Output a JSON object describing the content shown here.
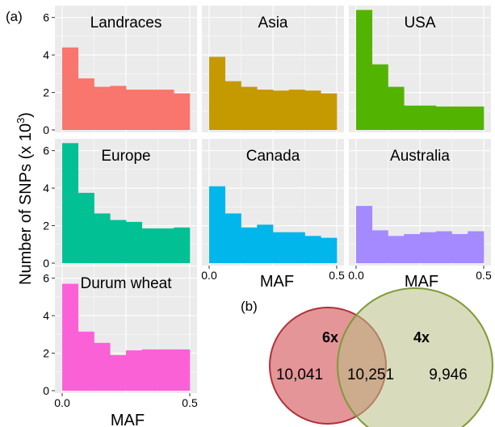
{
  "panel_a_label": "(a)",
  "panel_b_label": "(b)",
  "ylabel": "Number of SNPs (x 10",
  "ylabel_superscript": "3",
  "ylabel_close": ")",
  "xlabel": "MAF",
  "chart_data": [
    {
      "type": "bar",
      "title": "Landraces",
      "x": [
        0,
        0.0625,
        0.125,
        0.1875,
        0.25,
        0.3125,
        0.375,
        0.4375
      ],
      "values": [
        4.4,
        2.75,
        2.3,
        2.35,
        2.15,
        2.15,
        2.15,
        1.95
      ],
      "color": "#F8766D",
      "xlim": [
        0,
        0.5
      ],
      "ylim": [
        0,
        6.5
      ],
      "yticks": [
        "0",
        "2",
        "4",
        "6"
      ],
      "xticks": [],
      "grid": true
    },
    {
      "type": "bar",
      "title": "Asia",
      "x": [
        0,
        0.0625,
        0.125,
        0.1875,
        0.25,
        0.3125,
        0.375,
        0.4375
      ],
      "values": [
        3.9,
        2.6,
        2.3,
        2.15,
        2.1,
        2.15,
        2.1,
        1.95
      ],
      "color": "#C49A00",
      "xlim": [
        0,
        0.5
      ],
      "ylim": [
        0,
        6.5
      ],
      "yticks": [],
      "xticks": [],
      "grid": true
    },
    {
      "type": "bar",
      "title": "USA",
      "x": [
        0,
        0.0625,
        0.125,
        0.1875,
        0.25,
        0.3125,
        0.375,
        0.4375
      ],
      "values": [
        6.4,
        3.5,
        2.3,
        1.3,
        1.3,
        1.25,
        1.25,
        1.25
      ],
      "color": "#53B400",
      "xlim": [
        0,
        0.5
      ],
      "ylim": [
        0,
        6.5
      ],
      "yticks": [],
      "xticks": [],
      "grid": true
    },
    {
      "type": "bar",
      "title": "Europe",
      "x": [
        0,
        0.0625,
        0.125,
        0.1875,
        0.25,
        0.3125,
        0.375,
        0.4375
      ],
      "values": [
        6.4,
        3.75,
        2.65,
        2.3,
        2.2,
        1.85,
        1.85,
        1.9
      ],
      "color": "#00C094",
      "xlim": [
        0,
        0.5
      ],
      "ylim": [
        0,
        6.5
      ],
      "yticks": [
        "0",
        "2",
        "4",
        "6"
      ],
      "xticks": [],
      "grid": true
    },
    {
      "type": "bar",
      "title": "Canada",
      "x": [
        0,
        0.0625,
        0.125,
        0.1875,
        0.25,
        0.3125,
        0.375,
        0.4375
      ],
      "values": [
        4.1,
        2.65,
        1.9,
        2.05,
        1.65,
        1.65,
        1.45,
        1.35
      ],
      "color": "#00B6EB",
      "xlim": [
        0,
        0.5
      ],
      "ylim": [
        0,
        6.5
      ],
      "yticks": [],
      "xticks": [
        "0.0",
        "0.5"
      ],
      "grid": true
    },
    {
      "type": "bar",
      "title": "Australia",
      "x": [
        0,
        0.0625,
        0.125,
        0.1875,
        0.25,
        0.3125,
        0.375,
        0.4375
      ],
      "values": [
        3.05,
        1.75,
        1.45,
        1.55,
        1.65,
        1.7,
        1.55,
        1.7
      ],
      "color": "#A58AFF",
      "xlim": [
        0,
        0.5
      ],
      "ylim": [
        0,
        6.5
      ],
      "yticks": [],
      "xticks": [
        "0.0",
        "0.5"
      ],
      "grid": true
    },
    {
      "type": "bar",
      "title": "Durum wheat",
      "x": [
        0,
        0.0625,
        0.125,
        0.1875,
        0.25,
        0.3125,
        0.375,
        0.4375
      ],
      "values": [
        5.7,
        3.15,
        2.55,
        1.9,
        2.15,
        2.2,
        2.2,
        2.2
      ],
      "color": "#FB61D7",
      "xlim": [
        0,
        0.5
      ],
      "ylim": [
        0,
        6.5
      ],
      "yticks": [
        "0",
        "2",
        "4",
        "6"
      ],
      "xticks": [
        "0.0",
        "0.5"
      ],
      "grid": true
    }
  ],
  "venn": {
    "left_label": "6x",
    "right_label": "4x",
    "left_only": "10,041",
    "overlap": "10,251",
    "right_only": "9,946",
    "left_color": "#E0868A",
    "right_color": "#B8BF85"
  }
}
